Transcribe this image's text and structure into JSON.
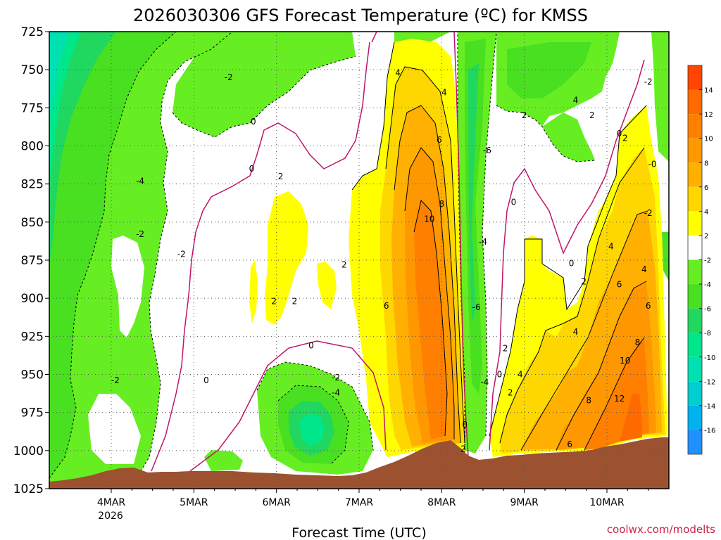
{
  "title": "2026030306 GFS Forecast Temperature (ºC) for KMSS",
  "x_axis_title": "Forecast Time (UTC)",
  "credit": "coolwx.com/modelts",
  "colors": {
    "terrain": "#9c5230",
    "zero_contour": "#c0156a",
    "contour": "#000000",
    "grid": "#555555"
  },
  "chart_data": {
    "type": "heatmap",
    "variable": "Temperature (ºC)",
    "y_axis": {
      "ticks": [
        "725",
        "750",
        "775",
        "800",
        "825",
        "850",
        "875",
        "900",
        "925",
        "950",
        "975",
        "1000",
        "1025"
      ],
      "range": [
        1025,
        725
      ]
    },
    "x_axis": {
      "ticks": [
        "4MAR",
        "5MAR",
        "6MAR",
        "7MAR",
        "8MAR",
        "9MAR",
        "10MAR"
      ],
      "year_label": "2026",
      "range_days": [
        3.25,
        10.75
      ]
    },
    "colorbar": {
      "levels": [
        "-16",
        "-14",
        "-12",
        "-10",
        "-8",
        "-6",
        "-4",
        "-2",
        "2",
        "4",
        "6",
        "8",
        "10",
        "12",
        "14"
      ],
      "colors": [
        "#1e90ff",
        "#00b2ee",
        "#00ced1",
        "#00e0b0",
        "#00e68a",
        "#20d860",
        "#48e020",
        "#66ee22",
        "#ffffff",
        "#ffff00",
        "#ffd700",
        "#ffb000",
        "#ff9800",
        "#ff8000",
        "#ff6a00",
        "#ff4500"
      ]
    },
    "contour_labels": [
      {
        "t": 4.05,
        "p": 954,
        "v": "-2"
      },
      {
        "t": 4.35,
        "p": 823,
        "v": "-4"
      },
      {
        "t": 4.35,
        "p": 858,
        "v": "-2"
      },
      {
        "t": 4.85,
        "p": 871,
        "v": "-2"
      },
      {
        "t": 5.15,
        "p": 954,
        "v": "0"
      },
      {
        "t": 5.42,
        "p": 755,
        "v": "-2"
      },
      {
        "t": 5.7,
        "p": 815,
        "v": "0"
      },
      {
        "t": 5.72,
        "p": 784,
        "v": "0"
      },
      {
        "t": 6.05,
        "p": 820,
        "v": "2"
      },
      {
        "t": 5.97,
        "p": 902,
        "v": "2"
      },
      {
        "t": 6.22,
        "p": 902,
        "v": "2"
      },
      {
        "t": 6.42,
        "p": 931,
        "v": "0"
      },
      {
        "t": 6.82,
        "p": 878,
        "v": "2"
      },
      {
        "t": 6.72,
        "p": 952,
        "v": "-2"
      },
      {
        "t": 6.72,
        "p": 962,
        "v": "-4"
      },
      {
        "t": 7.33,
        "p": 905,
        "v": "6"
      },
      {
        "t": 7.47,
        "p": 752,
        "v": "4"
      },
      {
        "t": 8.03,
        "p": 765,
        "v": "4"
      },
      {
        "t": 7.97,
        "p": 796,
        "v": "6"
      },
      {
        "t": 8.0,
        "p": 838,
        "v": "8"
      },
      {
        "t": 7.85,
        "p": 848,
        "v": "10"
      },
      {
        "t": 8.28,
        "p": 983,
        "v": "0"
      },
      {
        "t": 8.26,
        "p": 999,
        "v": "2"
      },
      {
        "t": 8.55,
        "p": 803,
        "v": "-6"
      },
      {
        "t": 8.5,
        "p": 863,
        "v": "-4"
      },
      {
        "t": 8.42,
        "p": 906,
        "v": "-6"
      },
      {
        "t": 8.52,
        "p": 955,
        "v": "-4"
      },
      {
        "t": 8.77,
        "p": 933,
        "v": "2"
      },
      {
        "t": 8.7,
        "p": 950,
        "v": "0"
      },
      {
        "t": 8.87,
        "p": 837,
        "v": "0"
      },
      {
        "t": 8.83,
        "p": 962,
        "v": "2"
      },
      {
        "t": 8.95,
        "p": 950,
        "v": "4"
      },
      {
        "t": 9.0,
        "p": 780,
        "v": "2"
      },
      {
        "t": 9.62,
        "p": 770,
        "v": "4"
      },
      {
        "t": 9.82,
        "p": 780,
        "v": "2"
      },
      {
        "t": 9.72,
        "p": 889,
        "v": "2"
      },
      {
        "t": 9.57,
        "p": 877,
        "v": "0"
      },
      {
        "t": 9.62,
        "p": 922,
        "v": "4"
      },
      {
        "t": 9.55,
        "p": 996,
        "v": "6"
      },
      {
        "t": 9.78,
        "p": 967,
        "v": "8"
      },
      {
        "t": 10.05,
        "p": 866,
        "v": "4"
      },
      {
        "t": 10.15,
        "p": 891,
        "v": "6"
      },
      {
        "t": 10.15,
        "p": 792,
        "v": "0"
      },
      {
        "t": 10.22,
        "p": 795,
        "v": "2"
      },
      {
        "t": 10.22,
        "p": 941,
        "v": "10"
      },
      {
        "t": 10.15,
        "p": 966,
        "v": "12"
      },
      {
        "t": 10.37,
        "p": 929,
        "v": "8"
      },
      {
        "t": 10.5,
        "p": 905,
        "v": "6"
      },
      {
        "t": 10.45,
        "p": 881,
        "v": "4"
      },
      {
        "t": 10.5,
        "p": 844,
        "v": "-2"
      },
      {
        "t": 10.5,
        "p": 758,
        "v": "-2"
      },
      {
        "t": 10.55,
        "p": 812,
        "v": "-0"
      }
    ]
  }
}
